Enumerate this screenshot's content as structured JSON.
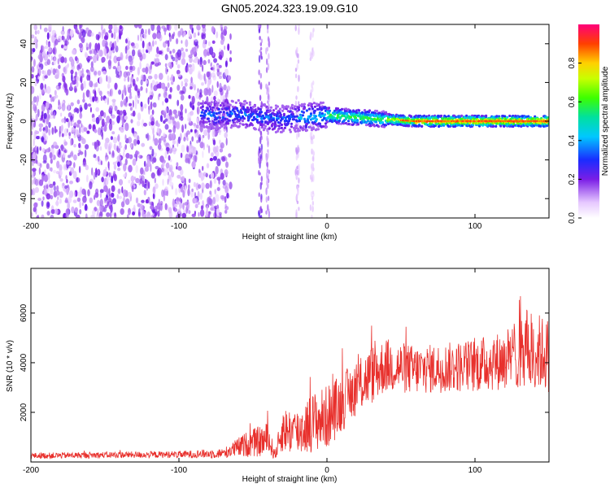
{
  "title": "GN05.2024.323.19.09.G10",
  "chart_data": [
    {
      "type": "heatmap",
      "xlabel": "Height of straight line (km)",
      "ylabel": "Frequency (Hz)",
      "xlim": [
        -200,
        150
      ],
      "ylim": [
        -50,
        50
      ],
      "xticks": [
        -200,
        -100,
        0,
        100
      ],
      "yticks": [
        -40,
        -20,
        0,
        20,
        40
      ],
      "colorbar": {
        "label": "Normalized spectral amplitude",
        "range": [
          0,
          1
        ],
        "ticks": [
          "0.0",
          "0.2",
          "0.4",
          "0.6",
          "0.8"
        ],
        "tick_values": [
          0,
          0.2,
          0.4,
          0.6,
          0.8
        ]
      },
      "ridge": [
        {
          "x": -85,
          "f": 4
        },
        {
          "x": -75,
          "f": 3
        },
        {
          "x": -60,
          "f": 4
        },
        {
          "x": -45,
          "f": 2
        },
        {
          "x": -30,
          "f": 1
        },
        {
          "x": -15,
          "f": 2
        },
        {
          "x": 0,
          "f": 3
        },
        {
          "x": 20,
          "f": 2
        },
        {
          "x": 40,
          "f": 1
        },
        {
          "x": 60,
          "f": 0
        },
        {
          "x": 100,
          "f": 0
        },
        {
          "x": 150,
          "f": 0
        }
      ]
    },
    {
      "type": "line",
      "xlabel": "Height of straight line (km)",
      "ylabel": "SNR (10 * v/v)",
      "xlim": [
        -200,
        150
      ],
      "ylim": [
        0,
        7800
      ],
      "xticks": [
        -100,
        0,
        100
      ],
      "xtick_labels": [
        "-200",
        "-100",
        "0",
        "100"
      ],
      "xtick_label_values": [
        -200,
        -100,
        0,
        100
      ],
      "yticks": [
        2000,
        4000,
        6000
      ],
      "color": "#e8302c",
      "envelope": [
        {
          "x": -200,
          "mean": 250,
          "amp": 120
        },
        {
          "x": -150,
          "mean": 280,
          "amp": 130
        },
        {
          "x": -100,
          "mean": 300,
          "amp": 140
        },
        {
          "x": -70,
          "mean": 350,
          "amp": 200
        },
        {
          "x": -55,
          "mean": 700,
          "amp": 500
        },
        {
          "x": -40,
          "mean": 900,
          "amp": 700
        },
        {
          "x": -35,
          "mean": 300,
          "amp": 200
        },
        {
          "x": -30,
          "mean": 1300,
          "amp": 900
        },
        {
          "x": -20,
          "mean": 1200,
          "amp": 1000
        },
        {
          "x": -10,
          "mean": 1600,
          "amp": 1200
        },
        {
          "x": 0,
          "mean": 1800,
          "amp": 1300
        },
        {
          "x": 10,
          "mean": 2400,
          "amp": 1200
        },
        {
          "x": 20,
          "mean": 3000,
          "amp": 1100
        },
        {
          "x": 30,
          "mean": 3500,
          "amp": 1200
        },
        {
          "x": 40,
          "mean": 3900,
          "amp": 1100
        },
        {
          "x": 60,
          "mean": 3700,
          "amp": 1000
        },
        {
          "x": 80,
          "mean": 3800,
          "amp": 1000
        },
        {
          "x": 100,
          "mean": 3900,
          "amp": 1100
        },
        {
          "x": 120,
          "mean": 4100,
          "amp": 1200
        },
        {
          "x": 135,
          "mean": 4600,
          "amp": 1600
        },
        {
          "x": 150,
          "mean": 4300,
          "amp": 1500
        }
      ],
      "n_points": 1400
    }
  ]
}
